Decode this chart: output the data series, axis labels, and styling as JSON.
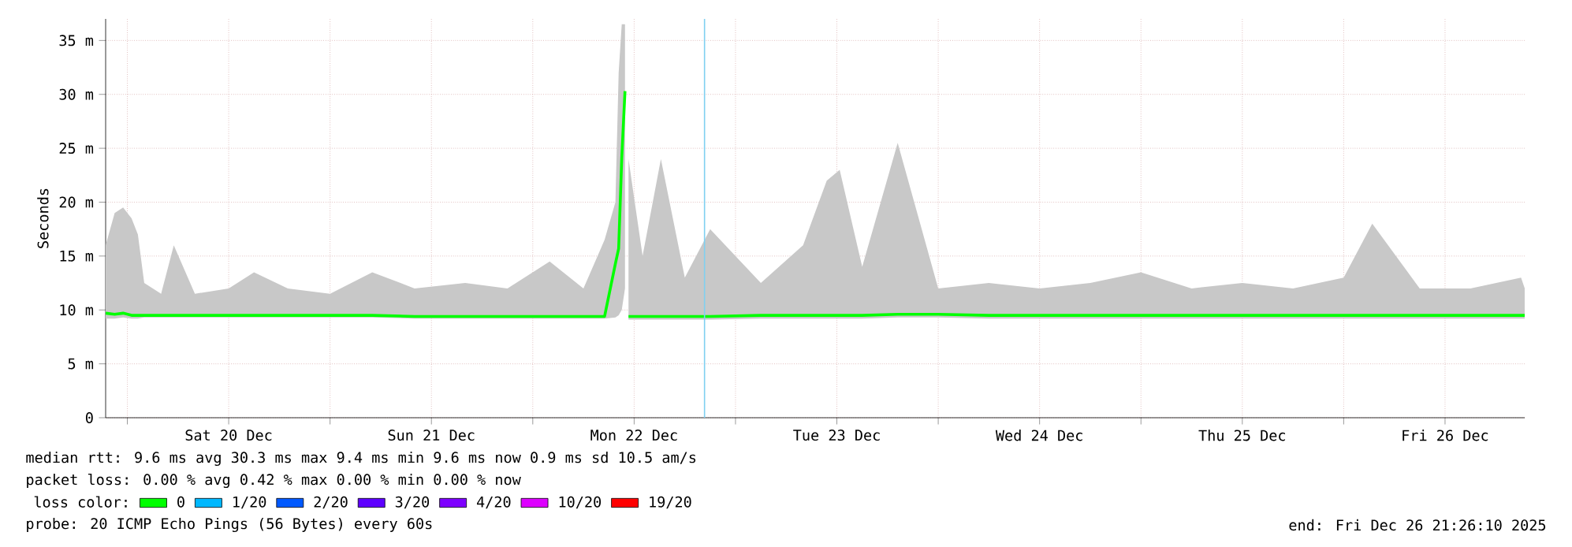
{
  "chart_data": {
    "type": "line",
    "ylabel": "Seconds",
    "xlim": [
      "2025-12-19T21:26",
      "2025-12-26T21:26"
    ],
    "xticks": [
      {
        "value": "2025-12-20T00:00",
        "label": null
      },
      {
        "value": "2025-12-20T12:00",
        "label": "Sat 20 Dec"
      },
      {
        "value": "2025-12-21T00:00",
        "label": null
      },
      {
        "value": "2025-12-21T12:00",
        "label": "Sun 21 Dec"
      },
      {
        "value": "2025-12-22T00:00",
        "label": null
      },
      {
        "value": "2025-12-22T12:00",
        "label": "Mon 22 Dec"
      },
      {
        "value": "2025-12-23T00:00",
        "label": null
      },
      {
        "value": "2025-12-23T12:00",
        "label": "Tue 23 Dec"
      },
      {
        "value": "2025-12-24T00:00",
        "label": null
      },
      {
        "value": "2025-12-24T12:00",
        "label": "Wed 24 Dec"
      },
      {
        "value": "2025-12-25T00:00",
        "label": null
      },
      {
        "value": "2025-12-25T12:00",
        "label": "Thu 25 Dec"
      },
      {
        "value": "2025-12-26T00:00",
        "label": null
      },
      {
        "value": "2025-12-26T12:00",
        "label": "Fri 26 Dec"
      }
    ],
    "ylim": [
      0,
      37
    ],
    "yticks": [
      0,
      {
        "value": 5,
        "label": "5 m"
      },
      {
        "value": 10,
        "label": "10 m"
      },
      {
        "value": 15,
        "label": "15 m"
      },
      {
        "value": 20,
        "label": "20 m"
      },
      {
        "value": 25,
        "label": "25 m"
      },
      {
        "value": 30,
        "label": "30 m"
      },
      {
        "value": 35,
        "label": "35 m"
      }
    ],
    "grid": true,
    "legend": "bottom",
    "legend_title": "loss color:",
    "ref_lines": [
      {
        "axis": "x",
        "value": "2025-12-22T20:20",
        "color": "#80d0f0"
      }
    ],
    "series": [
      {
        "name": "0",
        "color": "#00ff00",
        "x": [
          "2025-12-19T21:26",
          "2025-12-19T22:30",
          "2025-12-19T23:30",
          "2025-12-20T00:30",
          "2025-12-20T01:15",
          "2025-12-20T02:00",
          "2025-12-20T04:00",
          "2025-12-20T05:30",
          "2025-12-20T08:00",
          "2025-12-20T12:00",
          "2025-12-20T15:00",
          "2025-12-20T19:00",
          "2025-12-21T00:00",
          "2025-12-21T05:00",
          "2025-12-21T10:00",
          "2025-12-21T16:00",
          "2025-12-21T21:00",
          "2025-12-22T02:00",
          "2025-12-22T06:00",
          "2025-12-22T08:30",
          "2025-12-22T09:47",
          "2025-12-22T10:10",
          "2025-12-22T10:32",
          "2025-12-22T10:55",
          "2025-12-22T11:06",
          "2025-12-22T11:20",
          "2025-12-22T13:00",
          "2025-12-22T15:10",
          "2025-12-22T18:00",
          "2025-12-22T21:00",
          "2025-12-23T03:00",
          "2025-12-23T08:00",
          "2025-12-23T10:48",
          "2025-12-23T12:20",
          "2025-12-23T15:00",
          "2025-12-23T19:12",
          "2025-12-24T00:00",
          "2025-12-24T06:00",
          "2025-12-24T12:00",
          "2025-12-24T18:00",
          "2025-12-25T00:00",
          "2025-12-25T06:00",
          "2025-12-25T12:00",
          "2025-12-25T18:00",
          "2025-12-26T00:00",
          "2025-12-26T03:23",
          "2025-12-26T09:00",
          "2025-12-26T15:00",
          "2025-12-26T21:00",
          "2025-12-26T21:26"
        ],
        "values": [
          9.7,
          9.6,
          9.7,
          9.5,
          9.5,
          9.5,
          9.5,
          9.5,
          9.5,
          9.5,
          9.5,
          9.5,
          9.5,
          9.5,
          9.4,
          9.4,
          9.4,
          9.4,
          9.4,
          9.4,
          14.3,
          15.7,
          24.1,
          30.3,
          null,
          9.4,
          9.4,
          9.4,
          9.4,
          9.4,
          9.5,
          9.5,
          9.5,
          9.5,
          9.5,
          9.6,
          9.6,
          9.5,
          9.5,
          9.5,
          9.5,
          9.5,
          9.5,
          9.5,
          9.5,
          9.5,
          9.5,
          9.5,
          9.5,
          9.5
        ],
        "lower": [
          9.2,
          9.2,
          9.3,
          9.2,
          9.2,
          9.3,
          9.3,
          9.3,
          9.3,
          9.3,
          9.3,
          9.3,
          9.3,
          9.3,
          9.2,
          9.2,
          9.2,
          9.2,
          9.2,
          9.2,
          9.3,
          9.5,
          10,
          12,
          null,
          9.1,
          9.1,
          9.1,
          9.1,
          9.1,
          9.2,
          9.2,
          9.2,
          9.2,
          9.2,
          9.3,
          9.3,
          9.2,
          9.2,
          9.2,
          9.2,
          9.2,
          9.2,
          9.2,
          9.2,
          9.2,
          9.2,
          9.2,
          9.2,
          9.2
        ],
        "upper": [
          16,
          19,
          19.5,
          18.5,
          17,
          12.5,
          11.5,
          16,
          11.5,
          12,
          13.5,
          12,
          11.5,
          13.5,
          12,
          12.5,
          12,
          14.5,
          12,
          16.5,
          20,
          32,
          36.5,
          36.5,
          null,
          24,
          15,
          24,
          13,
          17.5,
          12.5,
          16,
          22,
          23,
          14,
          25.5,
          12,
          12.5,
          12,
          12.5,
          13.5,
          12,
          12.5,
          12,
          13,
          18,
          12,
          12,
          13,
          12
        ]
      },
      {
        "name": "1/20",
        "color": "#00b8ff"
      },
      {
        "name": "2/20",
        "color": "#0059ff"
      },
      {
        "name": "3/20",
        "color": "#5e00ff"
      },
      {
        "name": "4/20",
        "color": "#7e00ff"
      },
      {
        "name": "10/20",
        "color": "#dd00ff"
      },
      {
        "name": "19/20",
        "color": "#ff0000"
      }
    ],
    "annotations": [
      "median rtt:  9.6 ms avg  30.3 ms max  9.4 ms min  9.6 ms now  0.9 ms sd  10.5   am/s",
      "packet loss: 0.00 % avg  0.42 % max  0.00 % min  0.00 % now",
      "probe:       20 ICMP Echo Pings (56 Bytes) every 60s",
      "end: Fri Dec 26 21:26:10 2025"
    ]
  }
}
